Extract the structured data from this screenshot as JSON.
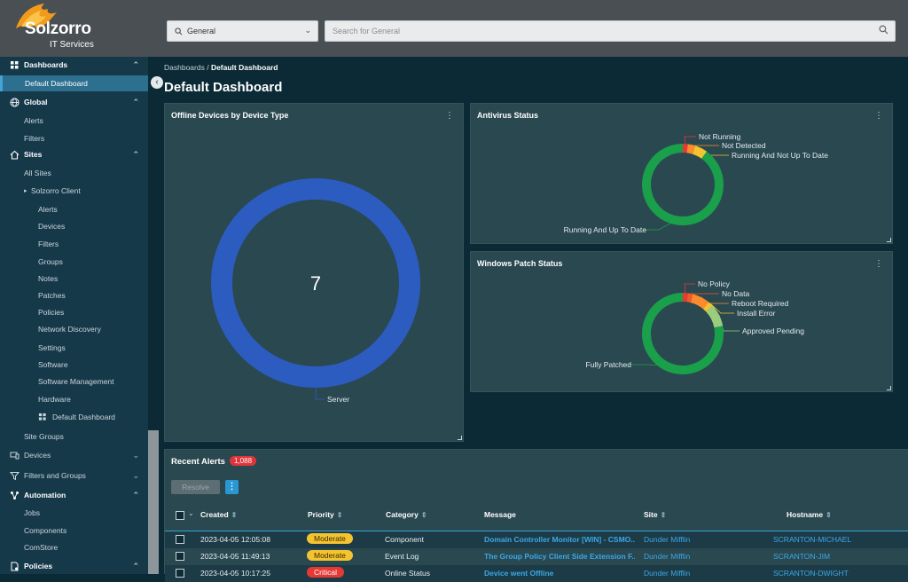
{
  "header": {
    "brand_name": "Solzorro",
    "brand_sub": "IT Services",
    "scope_value": "General",
    "search_placeholder": "Search for General"
  },
  "sidebar": {
    "dashboards": "Dashboards",
    "default_dashboard": "Default Dashboard",
    "global": "Global",
    "global_alerts": "Alerts",
    "global_filters": "Filters",
    "sites": "Sites",
    "all_sites": "All Sites",
    "client": "Solzorro Client",
    "client_items": [
      "Alerts",
      "Devices",
      "Filters",
      "Groups",
      "Notes",
      "Patches",
      "Policies",
      "Network Discovery",
      "Settings",
      "Software",
      "Software Management",
      "Hardware"
    ],
    "client_dashboard": "Default Dashboard",
    "site_groups": "Site Groups",
    "devices": "Devices",
    "filters_groups": "Filters and Groups",
    "automation": "Automation",
    "jobs": "Jobs",
    "components": "Components",
    "comstore": "ComStore",
    "policies": "Policies"
  },
  "breadcrumb": {
    "parent": "Dashboards",
    "sep": " / ",
    "current": "Default Dashboard"
  },
  "page_title": "Default Dashboard",
  "widgets": {
    "offline": {
      "title": "Offline Devices by Device Type",
      "center_value": "7",
      "labels": [
        "Server"
      ]
    },
    "antivirus": {
      "title": "Antivirus Status",
      "labels": [
        "Not Running",
        "Not Detected",
        "Running And Not Up To Date",
        "Running And Up To Date"
      ]
    },
    "patch": {
      "title": "Windows Patch Status",
      "labels": [
        "No Policy",
        "No Data",
        "Reboot Required",
        "Install Error",
        "Approved Pending",
        "Fully Patched"
      ]
    },
    "menu_glyph": "⋮"
  },
  "chart_data": [
    {
      "type": "pie",
      "title": "Offline Devices by Device Type",
      "center_text": "7",
      "slices": [
        {
          "label": "Server",
          "value": 7,
          "color": "#2d5cc0"
        }
      ]
    },
    {
      "type": "pie",
      "title": "Antivirus Status",
      "slices": [
        {
          "label": "Not Running",
          "value": 2,
          "color": "#e53935"
        },
        {
          "label": "Not Detected",
          "value": 3,
          "color": "#fb8c2d"
        },
        {
          "label": "Running And Not Up To Date",
          "value": 5,
          "color": "#f4c430"
        },
        {
          "label": "Running And Up To Date",
          "value": 90,
          "color": "#1a9f4a"
        }
      ]
    },
    {
      "type": "pie",
      "title": "Windows Patch Status",
      "slices": [
        {
          "label": "No Policy",
          "value": 2,
          "color": "#e53935"
        },
        {
          "label": "No Data",
          "value": 2,
          "color": "#ef5a2c"
        },
        {
          "label": "Reboot Required",
          "value": 7,
          "color": "#fb8c2d"
        },
        {
          "label": "Install Error",
          "value": 2,
          "color": "#f4c430"
        },
        {
          "label": "Approved Pending",
          "value": 9,
          "color": "#9acd7d"
        },
        {
          "label": "Fully Patched",
          "value": 78,
          "color": "#1a9f4a"
        }
      ]
    }
  ],
  "alerts": {
    "title": "Recent Alerts",
    "count": "1,088",
    "resolve_label": "Resolve",
    "kebab": "⋮",
    "columns": [
      "Created",
      "Priority",
      "Category",
      "Message",
      "Site",
      "Hostname"
    ],
    "rows": [
      {
        "created": "2023-04-05 12:05:08",
        "priority": "Moderate",
        "category": "Component",
        "message": "Domain Controller Monitor [WIN] - CSMO...",
        "site": "Dunder Mifflin",
        "hostname": "SCRANTON-MICHAEL"
      },
      {
        "created": "2023-04-05 11:49:13",
        "priority": "Moderate",
        "category": "Event Log",
        "message": "The Group Policy Client Side Extension F...",
        "site": "Dunder Mifflin",
        "hostname": "SCRANTON-JIM"
      },
      {
        "created": "2023-04-05 10:17:25",
        "priority": "Critical",
        "category": "Online Status",
        "message": "Device went Offline",
        "site": "Dunder Mifflin",
        "hostname": "SCRANTON-DWIGHT"
      }
    ]
  },
  "colors": {
    "accent": "#45a3d5",
    "moderate": "#f4c430",
    "critical": "#e53935",
    "link": "#3aa8e6"
  }
}
